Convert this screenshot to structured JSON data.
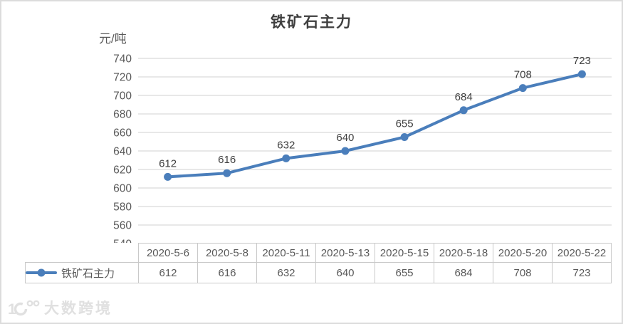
{
  "chart_data": {
    "type": "line",
    "title": "铁矿石主力",
    "unit_label": "元/吨",
    "categories": [
      "2020-5-6",
      "2020-5-8",
      "2020-5-11",
      "2020-5-13",
      "2020-5-15",
      "2020-5-18",
      "2020-5-20",
      "2020-5-22"
    ],
    "series": [
      {
        "name": "铁矿石主力",
        "values": [
          612,
          616,
          632,
          640,
          655,
          684,
          708,
          723
        ]
      }
    ],
    "ylim": [
      540,
      740
    ],
    "ytick_step": 20,
    "grid": "horizontal",
    "data_labels": true,
    "legend_position": "table-left"
  },
  "watermark": {
    "text": "大数跨境"
  },
  "colors": {
    "line": "#4A7EBB",
    "marker": "#4A7EBB",
    "grid": "#d9d9d9",
    "axis_text": "#595959",
    "data_label_text": "#3f3f3f",
    "table_border": "#c9c9c9",
    "card_border": "#dcdcdc",
    "watermark": "#e0e0e0"
  }
}
